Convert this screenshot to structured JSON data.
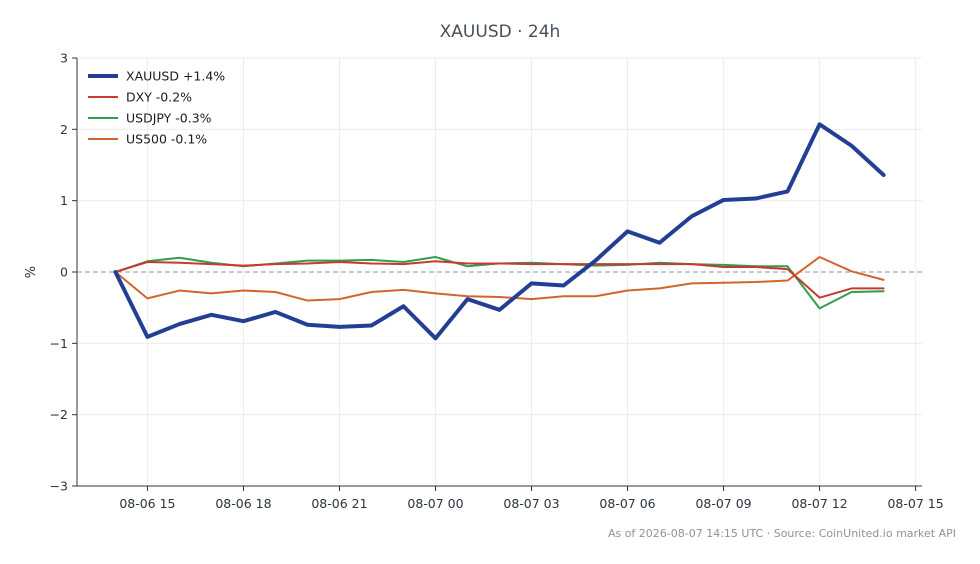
{
  "chart_data": {
    "type": "line",
    "title": "XAUUSD · 24h",
    "xlabel": "",
    "ylabel": "%",
    "ylim": [
      -3,
      3
    ],
    "yticks": [
      -3,
      -2,
      -1,
      0,
      1,
      2,
      3
    ],
    "ytick_labels": [
      "−3",
      "−2",
      "−1",
      "0",
      "1",
      "2",
      "3"
    ],
    "xticks": [
      {
        "h": 1,
        "label": "08-06 15"
      },
      {
        "h": 4,
        "label": "08-06 18"
      },
      {
        "h": 7,
        "label": "08-06 21"
      },
      {
        "h": 10,
        "label": "08-07 00"
      },
      {
        "h": 13,
        "label": "08-07 03"
      },
      {
        "h": 16,
        "label": "08-07 06"
      },
      {
        "h": 19,
        "label": "08-07 09"
      },
      {
        "h": 22,
        "label": "08-07 12"
      },
      {
        "h": 25,
        "label": "08-07 15"
      }
    ],
    "x_start": "2026-08-06 14:00",
    "x_step_hours": 1,
    "xlim_hours": [
      -1.2,
      25.2
    ],
    "grid": true,
    "zero_line": true,
    "legend_position": "top-left",
    "series": [
      {
        "name": "XAUUSD +1.4%",
        "color": "#233f94",
        "width": 4,
        "values": [
          0,
          -0.91,
          -0.73,
          -0.6,
          -0.69,
          -0.56,
          -0.74,
          -0.77,
          -0.75,
          -0.48,
          -0.93,
          -0.38,
          -0.53,
          -0.16,
          -0.19,
          0.16,
          0.57,
          0.41,
          0.78,
          1.01,
          1.03,
          1.13,
          2.07,
          1.77,
          1.36
        ]
      },
      {
        "name": "DXY -0.2%",
        "color": "#c83a31",
        "width": 2,
        "values": [
          0,
          0.14,
          0.13,
          0.11,
          0.09,
          0.11,
          0.12,
          0.14,
          0.12,
          0.11,
          0.15,
          0.12,
          0.12,
          0.11,
          0.11,
          0.11,
          0.11,
          0.11,
          0.11,
          0.07,
          0.07,
          0.04,
          -0.36,
          -0.23,
          -0.23
        ]
      },
      {
        "name": "USDJPY -0.3%",
        "color": "#2f9e4f",
        "width": 2,
        "values": [
          0,
          0.15,
          0.2,
          0.13,
          0.08,
          0.12,
          0.16,
          0.16,
          0.17,
          0.14,
          0.21,
          0.08,
          0.12,
          0.13,
          0.11,
          0.09,
          0.1,
          0.13,
          0.11,
          0.1,
          0.08,
          0.08,
          -0.51,
          -0.28,
          -0.27
        ]
      },
      {
        "name": "US500 -0.1%",
        "color": "#d2662a",
        "width": 2,
        "values": [
          0,
          -0.37,
          -0.26,
          -0.3,
          -0.26,
          -0.28,
          -0.4,
          -0.38,
          -0.28,
          -0.25,
          -0.3,
          -0.34,
          -0.35,
          -0.38,
          -0.34,
          -0.34,
          -0.26,
          -0.23,
          -0.16,
          -0.15,
          -0.14,
          -0.12,
          0.21,
          0.01,
          -0.11
        ]
      }
    ]
  },
  "footer": "As of 2026-08-07 14:15 UTC · Source: CoinUnited.io market API"
}
